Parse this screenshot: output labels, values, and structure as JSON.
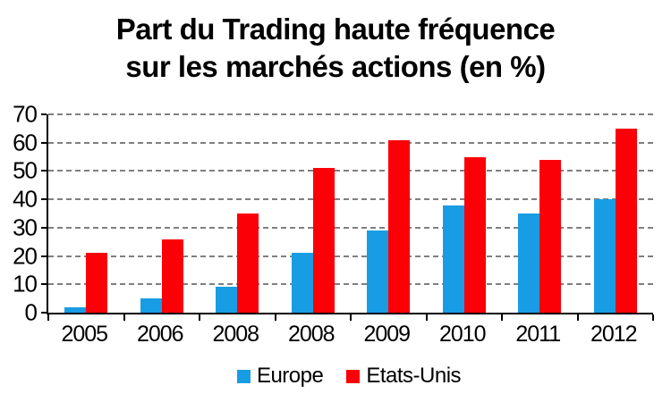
{
  "title_lines": [
    "Part du Trading haute fréquence",
    "sur les marchés actions (en %)"
  ],
  "chart_data": {
    "type": "bar",
    "title": "Part du Trading haute fréquence sur les marchés actions (en %)",
    "categories": [
      "2005",
      "2006",
      "2008",
      "2008",
      "2009",
      "2010",
      "2011",
      "2012"
    ],
    "series": [
      {
        "name": "Europe",
        "color": "#189DE4",
        "values": [
          2,
          5,
          9,
          21,
          29,
          38,
          35,
          40
        ]
      },
      {
        "name": "Etats-Unis",
        "color": "#FB0007",
        "values": [
          21,
          26,
          35,
          51,
          61,
          55,
          54,
          65
        ]
      }
    ],
    "xlabel": "",
    "ylabel": "",
    "ylim": [
      0,
      70
    ],
    "yticks": [
      0,
      10,
      20,
      30,
      40,
      50,
      60,
      70
    ],
    "grid": "horizontal-dashed",
    "legend_position": "bottom",
    "colors": {
      "gridline": "#7F7F7F",
      "axis": "#000000",
      "background": "#FFFFFF",
      "text": "#000000"
    }
  }
}
